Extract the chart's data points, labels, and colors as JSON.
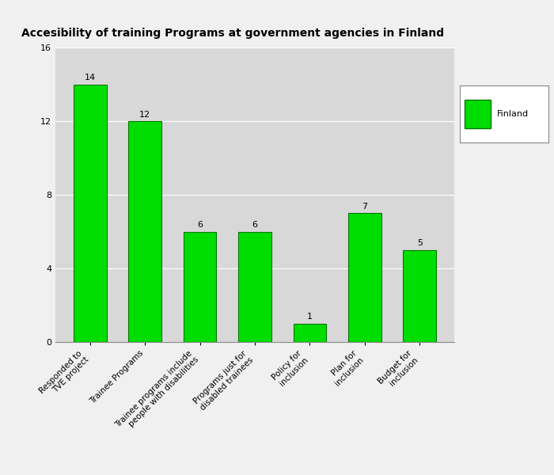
{
  "title": "Accesibility of training Programs at government agencies in Finland",
  "categories": [
    "Responded to\nTVE project",
    "Trainee Programs",
    "Trainee programs include\npeople with disabilities",
    "Programs just for\ndisabled trainees",
    "Policy for\ninclusion",
    "Plan for\ninclusion",
    "Budget for\ninclusion"
  ],
  "values": [
    14,
    12,
    6,
    6,
    1,
    7,
    5
  ],
  "bar_color": "#00DD00",
  "bar_edge_color": "#007700",
  "ylim": [
    0,
    16
  ],
  "yticks": [
    0,
    4,
    8,
    12,
    16
  ],
  "legend_label": "Finland",
  "legend_color": "#00DD00",
  "plot_bg_color": "#D8D8D8",
  "fig_bg_color": "#F0F0F0",
  "grid_color": "#FFFFFF",
  "title_fontsize": 10,
  "label_fontsize": 7.5,
  "tick_fontsize": 8,
  "value_fontsize": 8
}
